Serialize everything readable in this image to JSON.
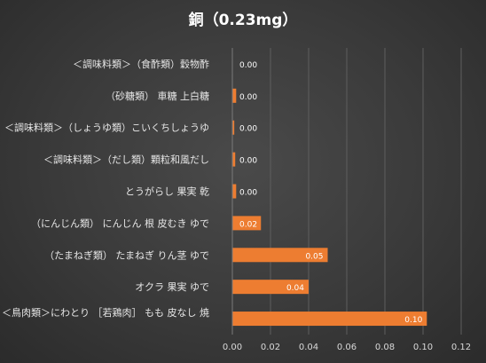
{
  "chart_data": {
    "type": "bar",
    "orientation": "horizontal",
    "title": "銅（0.23mg）",
    "categories": [
      "＜調味料類＞（食酢類）穀物酢",
      "（砂糖類） 車糖 上白糖",
      "＜調味料類＞（しょうゆ類）こいくちしょうゆ",
      "＜調味料類＞（だし類）顆粒和風だし",
      "とうがらし 果実 乾",
      "（にんじん類） にんじん 根 皮むき ゆで",
      "（たまねぎ類） たまねぎ りん茎 ゆで",
      "オクラ 果実 ゆで",
      "＜鳥肉類＞にわとり ［若鶏肉］ もも 皮なし 焼き"
    ],
    "values": [
      0.0,
      0.002,
      0.001,
      0.0015,
      0.002,
      0.015,
      0.05,
      0.04,
      0.102
    ],
    "data_labels": [
      "0.00",
      "0.00",
      "0.00",
      "0.00",
      "0.00",
      "0.02",
      "0.05",
      "0.04",
      "0.10"
    ],
    "xlim": [
      0,
      0.12
    ],
    "x_ticks": [
      "0.00",
      "0.02",
      "0.04",
      "0.06",
      "0.08",
      "0.10",
      "0.12"
    ],
    "grid": "vertical",
    "bar_color": "#ED7D31",
    "background_color": "#404040"
  }
}
